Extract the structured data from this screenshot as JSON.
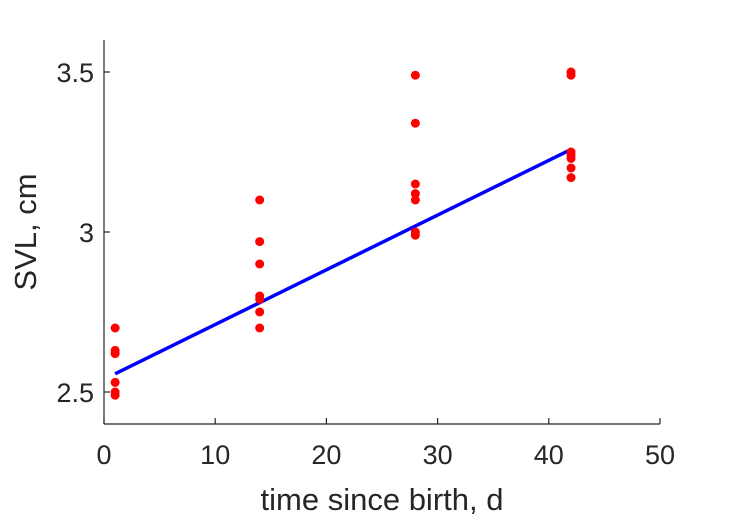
{
  "chart_data": {
    "type": "scatter",
    "title": "",
    "xlabel": "time since birth, d",
    "ylabel": "SVL, cm",
    "xlim": [
      0,
      50
    ],
    "ylim": [
      2.4,
      3.6
    ],
    "xticks": [
      0,
      10,
      20,
      30,
      40,
      50
    ],
    "yticks": [
      2.5,
      3,
      3.5
    ],
    "xtick_labels": [
      "0",
      "10",
      "20",
      "30",
      "40",
      "50"
    ],
    "ytick_labels": [
      "2.5",
      "3",
      "3.5"
    ],
    "grid": false,
    "legend": "none",
    "series": [
      {
        "kind": "scatter",
        "color": "#ff0000",
        "points": [
          [
            1,
            2.7
          ],
          [
            1,
            2.63
          ],
          [
            1,
            2.62
          ],
          [
            1,
            2.53
          ],
          [
            1,
            2.5
          ],
          [
            1,
            2.49
          ],
          [
            14,
            3.1
          ],
          [
            14,
            2.97
          ],
          [
            14,
            2.9
          ],
          [
            14,
            2.8
          ],
          [
            14,
            2.79
          ],
          [
            14,
            2.75
          ],
          [
            14,
            2.7
          ],
          [
            28,
            3.49
          ],
          [
            28,
            3.34
          ],
          [
            28,
            3.15
          ],
          [
            28,
            3.12
          ],
          [
            28,
            3.1
          ],
          [
            28,
            3.0
          ],
          [
            28,
            2.99
          ],
          [
            42,
            3.5
          ],
          [
            42,
            3.49
          ],
          [
            42,
            3.25
          ],
          [
            42,
            3.24
          ],
          [
            42,
            3.23
          ],
          [
            42,
            3.2
          ],
          [
            42,
            3.17
          ]
        ]
      },
      {
        "kind": "line",
        "color": "#0000ff",
        "points": [
          [
            1,
            2.557
          ],
          [
            42,
            3.258
          ]
        ]
      }
    ]
  }
}
